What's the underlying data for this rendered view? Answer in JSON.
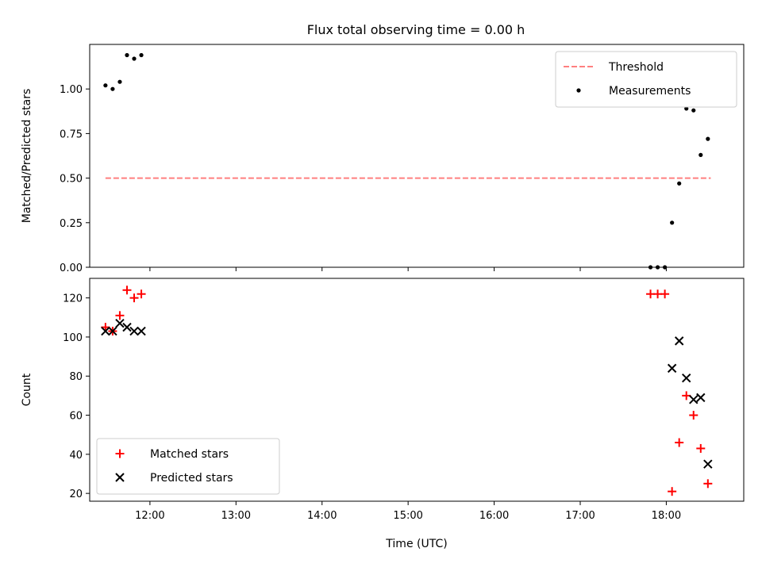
{
  "figure": {
    "title": "Flux total observing time = 0.00 h"
  },
  "chart_data": [
    {
      "type": "scatter",
      "ylabel": "Matched/Predicted stars",
      "xlim": [
        "11:18",
        "18:54"
      ],
      "ylim": [
        0,
        1.25
      ],
      "yticks": [
        0.0,
        0.25,
        0.5,
        0.75,
        1.0
      ],
      "ytick_labels": [
        "0.00",
        "0.25",
        "0.50",
        "0.75",
        "1.00"
      ],
      "legend_position": "upper right",
      "legend": [
        {
          "label": "Threshold",
          "marker": "dashed-line",
          "color": "#ff7f7f"
        },
        {
          "label": "Measurements",
          "marker": "dot",
          "color": "#000000"
        }
      ],
      "threshold": {
        "name": "Threshold",
        "y": 0.5,
        "x_start": "11:29",
        "x_end": "18:31",
        "color": "#ff7f7f"
      },
      "series": [
        {
          "name": "Measurements",
          "color": "#000000",
          "points": [
            [
              "11:29",
              1.02
            ],
            [
              "11:34",
              1.0
            ],
            [
              "11:39",
              1.04
            ],
            [
              "11:44",
              1.19
            ],
            [
              "11:49",
              1.17
            ],
            [
              "11:54",
              1.19
            ],
            [
              "17:49",
              0.0
            ],
            [
              "17:54",
              0.0
            ],
            [
              "17:59",
              0.0
            ],
            [
              "18:04",
              0.25
            ],
            [
              "18:09",
              0.47
            ],
            [
              "18:14",
              0.89
            ],
            [
              "18:19",
              0.88
            ],
            [
              "18:24",
              0.63
            ],
            [
              "18:29",
              0.72
            ]
          ]
        }
      ]
    },
    {
      "type": "scatter",
      "xlabel": "Time (UTC)",
      "ylabel": "Count",
      "xlim": [
        "11:18",
        "18:54"
      ],
      "ylim": [
        16,
        130
      ],
      "xticks": [
        "12:00",
        "13:00",
        "14:00",
        "15:00",
        "16:00",
        "17:00",
        "18:00"
      ],
      "yticks": [
        20,
        40,
        60,
        80,
        100,
        120
      ],
      "legend_position": "lower left",
      "legend": [
        {
          "label": "Matched stars",
          "marker": "plus",
          "color": "#ff0000"
        },
        {
          "label": "Predicted stars",
          "marker": "x",
          "color": "#000000"
        }
      ],
      "series": [
        {
          "name": "Matched stars",
          "marker": "plus",
          "color": "#ff0000",
          "points": [
            [
              "11:29",
              105
            ],
            [
              "11:34",
              103
            ],
            [
              "11:39",
              111
            ],
            [
              "11:44",
              124
            ],
            [
              "11:49",
              120
            ],
            [
              "11:54",
              122
            ],
            [
              "17:49",
              122
            ],
            [
              "17:54",
              122
            ],
            [
              "17:59",
              122
            ],
            [
              "18:04",
              21
            ],
            [
              "18:09",
              46
            ],
            [
              "18:14",
              70
            ],
            [
              "18:19",
              60
            ],
            [
              "18:24",
              43
            ],
            [
              "18:29",
              25
            ]
          ]
        },
        {
          "name": "Predicted stars",
          "marker": "x",
          "color": "#000000",
          "points": [
            [
              "11:29",
              103
            ],
            [
              "11:34",
              103
            ],
            [
              "11:39",
              107
            ],
            [
              "11:44",
              105
            ],
            [
              "11:49",
              103
            ],
            [
              "11:54",
              103
            ],
            [
              "18:04",
              84
            ],
            [
              "18:09",
              98
            ],
            [
              "18:14",
              79
            ],
            [
              "18:19",
              68
            ],
            [
              "18:24",
              69
            ],
            [
              "18:29",
              35
            ]
          ]
        }
      ]
    }
  ]
}
